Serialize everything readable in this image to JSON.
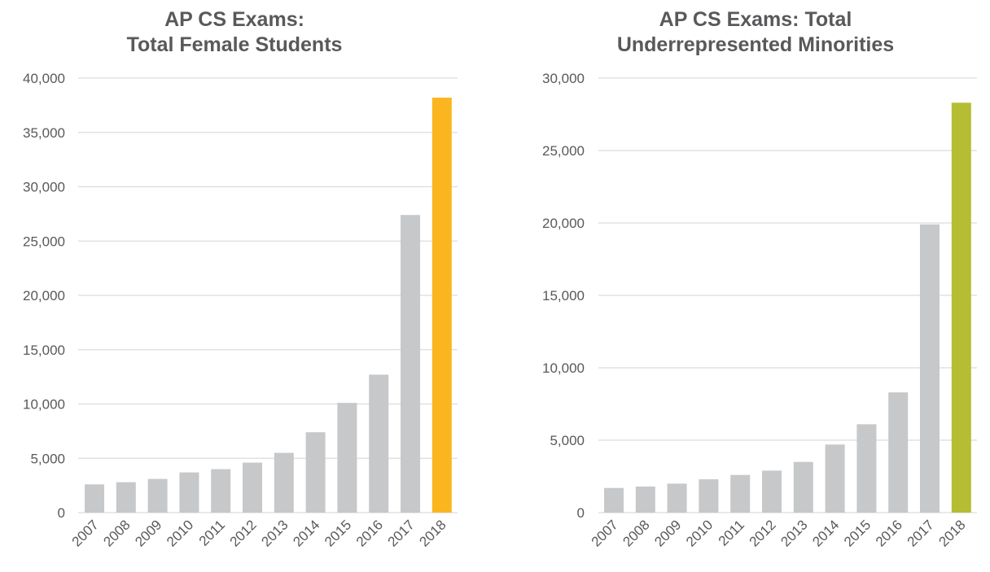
{
  "chart_data": [
    {
      "type": "bar",
      "title": [
        "AP CS Exams:",
        "Total Female Students"
      ],
      "categories": [
        "2007",
        "2008",
        "2009",
        "2010",
        "2011",
        "2012",
        "2013",
        "2014",
        "2015",
        "2016",
        "2017",
        "2018"
      ],
      "values": [
        2600,
        2800,
        3100,
        3700,
        4000,
        4600,
        5500,
        7400,
        10100,
        12700,
        27400,
        38200
      ],
      "ylim": [
        0,
        40000
      ],
      "yticks": [
        0,
        5000,
        10000,
        15000,
        20000,
        25000,
        30000,
        35000,
        40000
      ],
      "ytick_labels": [
        "0",
        "5,000",
        "10,000",
        "15,000",
        "20,000",
        "25,000",
        "30,000",
        "35,000",
        "40,000"
      ],
      "grid": true,
      "bar_color": "#c6c8ca",
      "highlight_color": "#fbb61f",
      "xlabel": "",
      "ylabel": ""
    },
    {
      "type": "bar",
      "title": [
        "AP CS Exams: Total",
        "Underrepresented Minorities"
      ],
      "categories": [
        "2007",
        "2008",
        "2009",
        "2010",
        "2011",
        "2012",
        "2013",
        "2014",
        "2015",
        "2016",
        "2017",
        "2018"
      ],
      "values": [
        1700,
        1800,
        2000,
        2300,
        2600,
        2900,
        3500,
        4700,
        6100,
        8300,
        19900,
        28300
      ],
      "ylim": [
        0,
        30000
      ],
      "yticks": [
        0,
        5000,
        10000,
        15000,
        20000,
        25000,
        30000
      ],
      "ytick_labels": [
        "0",
        "5,000",
        "10,000",
        "15,000",
        "20,000",
        "25,000",
        "30,000"
      ],
      "grid": true,
      "bar_color": "#c6c8ca",
      "highlight_color": "#b5bd33",
      "xlabel": "",
      "ylabel": ""
    }
  ]
}
